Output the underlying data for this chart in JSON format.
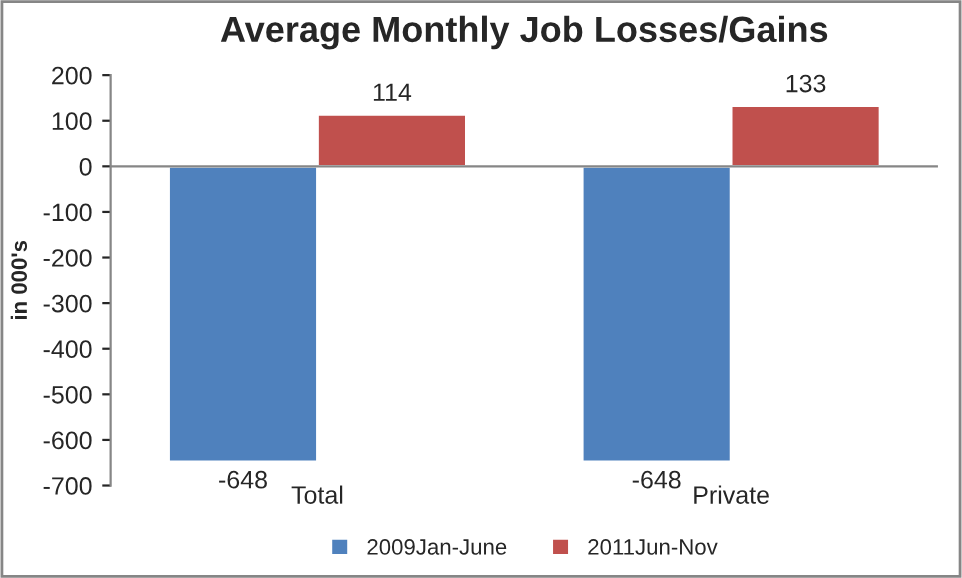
{
  "chart_data": {
    "type": "bar",
    "title": "Average Monthly Job Losses/Gains",
    "ylabel": "in 000's",
    "categories": [
      "Total",
      "Private"
    ],
    "series": [
      {
        "name": "2009Jan-June",
        "color": "#4f81bd",
        "values": [
          -648,
          -648
        ]
      },
      {
        "name": "2011Jun-Nov",
        "color": "#c0504d",
        "values": [
          114,
          133
        ]
      }
    ],
    "ylim": [
      -700,
      200
    ],
    "yticks": [
      -700,
      -600,
      -500,
      -400,
      -300,
      -200,
      -100,
      0,
      100,
      200
    ],
    "data_labels": true,
    "legend": "bottom"
  }
}
